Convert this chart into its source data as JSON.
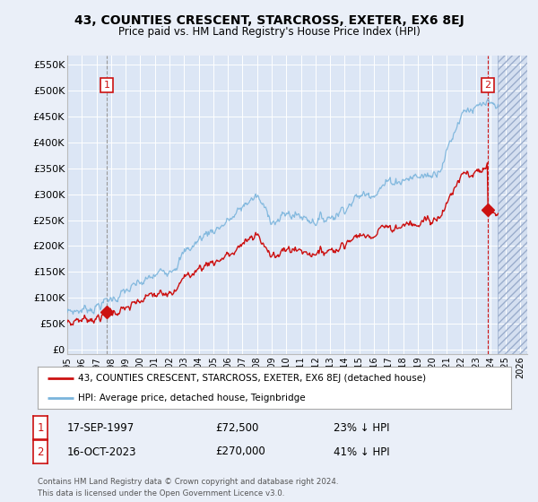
{
  "title": "43, COUNTIES CRESCENT, STARCROSS, EXETER, EX6 8EJ",
  "subtitle": "Price paid vs. HM Land Registry's House Price Index (HPI)",
  "background_color": "#eaeff8",
  "plot_bg_color": "#dce6f5",
  "hatch_bg_color": "#d0daea",
  "yticks": [
    0,
    50000,
    100000,
    150000,
    200000,
    250000,
    300000,
    350000,
    400000,
    450000,
    500000,
    550000
  ],
  "ytick_labels": [
    "£0",
    "£50K",
    "£100K",
    "£150K",
    "£200K",
    "£250K",
    "£300K",
    "£350K",
    "£400K",
    "£450K",
    "£500K",
    "£550K"
  ],
  "xlim_start": 1995.0,
  "xlim_end": 2026.5,
  "ylim_min": -8000,
  "ylim_max": 568000,
  "hpi_color": "#7ab4dc",
  "price_color": "#cc1111",
  "marker1_date": 1997.71,
  "marker1_hpi": 72500,
  "marker2_date": 2023.79,
  "marker2_price": 270000,
  "legend_line1": "43, COUNTIES CRESCENT, STARCROSS, EXETER, EX6 8EJ (detached house)",
  "legend_line2": "HPI: Average price, detached house, Teignbridge",
  "table_row1_num": "1",
  "table_row1_date": "17-SEP-1997",
  "table_row1_price": "£72,500",
  "table_row1_hpi": "23% ↓ HPI",
  "table_row2_num": "2",
  "table_row2_date": "16-OCT-2023",
  "table_row2_price": "£270,000",
  "table_row2_hpi": "41% ↓ HPI",
  "footer": "Contains HM Land Registry data © Crown copyright and database right 2024.\nThis data is licensed under the Open Government Licence v3.0.",
  "xtick_years": [
    1995,
    1996,
    1997,
    1998,
    1999,
    2000,
    2001,
    2002,
    2003,
    2004,
    2005,
    2006,
    2007,
    2008,
    2009,
    2010,
    2011,
    2012,
    2013,
    2014,
    2015,
    2016,
    2017,
    2018,
    2019,
    2020,
    2021,
    2022,
    2023,
    2024,
    2025,
    2026
  ],
  "hatch_start": 2024.5
}
